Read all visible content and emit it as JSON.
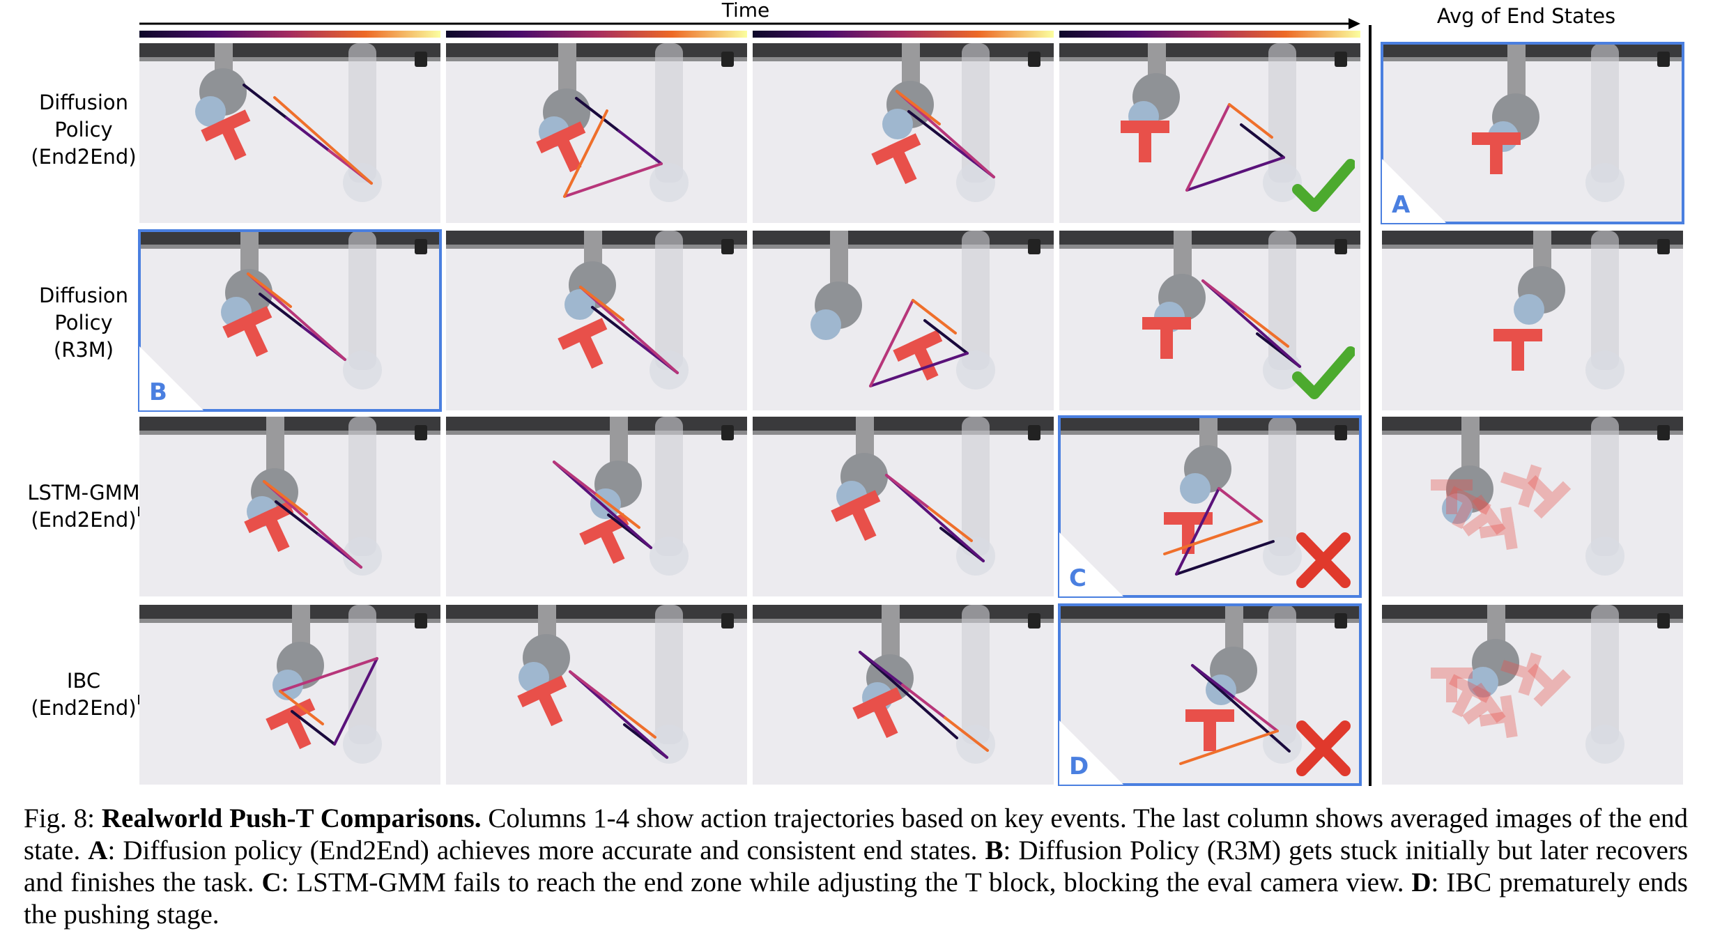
{
  "header": {
    "time_label": "Time",
    "avg_label": "Avg of End States"
  },
  "rows": [
    {
      "label": "Diffusion\nPolicy\n(End2End)"
    },
    {
      "label": "Diffusion\nPolicy\n(R3M)"
    },
    {
      "label": "LSTM-GMM\n(End2End)"
    },
    {
      "label": "IBC\n(End2End)"
    }
  ],
  "badges": {
    "A": "A",
    "B": "B",
    "C": "C",
    "D": "D"
  },
  "outcome_icons": [
    "check-icon",
    "check-icon",
    "cross-icon",
    "cross-icon"
  ],
  "colors": {
    "highlight": "#4a7fe0",
    "success": "#4caa2e",
    "failure": "#e0392c",
    "tblock": "#e8504a"
  },
  "caption": {
    "fig": "Fig. 8:",
    "title": "Realworld Push-T Comparisons.",
    "t1": " Columns 1-4 show action trajectories based on key events. The last column shows averaged images of the end state. ",
    "a_key": "A",
    "a_text": ": Diffusion policy (End2End) achieves more accurate and consistent end states. ",
    "b_key": "B",
    "b_text": ": Diffusion Policy (R3M) gets stuck initially but later recovers and finishes the task. ",
    "c_key": "C",
    "c_text": ": LSTM-GMM fails to reach the end zone while adjusting the T block, blocking the eval camera view. ",
    "d_key": "D",
    "d_text": ": IBC prematurely ends the pushing stage."
  }
}
